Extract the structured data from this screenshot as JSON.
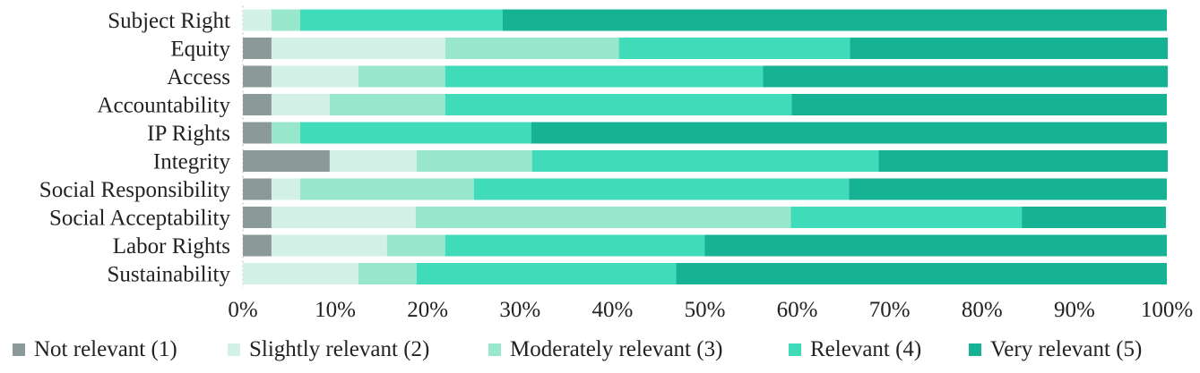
{
  "chart_data": {
    "type": "bar",
    "orientation": "horizontal",
    "stacked": true,
    "normalized": true,
    "categories": [
      "Subject Right",
      "Equity",
      "Access",
      "Accountability",
      "IP Rights",
      "Integrity",
      "Social Responsibility",
      "Social Acceptability",
      "Labor Rights",
      "Sustainability"
    ],
    "series": [
      {
        "name": "Not relevant (1)",
        "color": "#8c9999",
        "values": [
          0.0,
          3.1,
          3.1,
          3.1,
          3.1,
          9.4,
          3.1,
          3.1,
          3.1,
          0.0
        ]
      },
      {
        "name": "Slightly relevant (2)",
        "color": "#d3f1e6",
        "values": [
          3.1,
          18.8,
          9.4,
          6.3,
          0.0,
          9.4,
          3.1,
          15.6,
          12.5,
          12.5
        ]
      },
      {
        "name": "Moderately relevant (3)",
        "color": "#98e6cc",
        "values": [
          3.1,
          18.8,
          9.4,
          12.5,
          3.1,
          12.5,
          18.8,
          40.6,
          6.3,
          6.3
        ]
      },
      {
        "name": "Relevant (4)",
        "color": "#40dcb9",
        "values": [
          21.9,
          25.0,
          34.4,
          37.5,
          25.0,
          37.5,
          40.6,
          25.0,
          28.1,
          28.1
        ]
      },
      {
        "name": "Very relevant (5)",
        "color": "#15b294",
        "values": [
          71.9,
          34.4,
          43.8,
          40.6,
          68.8,
          31.3,
          34.4,
          15.6,
          50.0,
          53.1
        ]
      }
    ],
    "xlim": [
      0,
      100
    ],
    "x_ticks": [
      "0%",
      "10%",
      "20%",
      "30%",
      "40%",
      "50%",
      "60%",
      "70%",
      "80%",
      "90%",
      "100%"
    ],
    "grid": false,
    "legend_position": "bottom"
  }
}
